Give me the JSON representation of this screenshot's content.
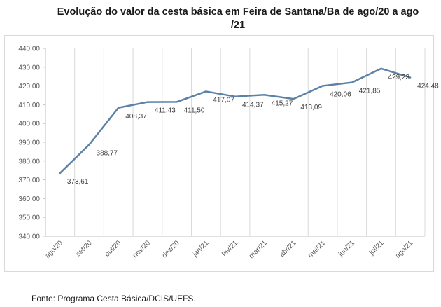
{
  "chart_data": {
    "type": "line",
    "title": "Evolução do valor da cesta básica em Feira de Santana/Ba de ago/20 a ago /21",
    "categories": [
      "ago/20",
      "set/20",
      "out/20",
      "nov/20",
      "dez/20",
      "jan/21",
      "fev/21",
      "mar/21",
      "abr/21",
      "mai/21",
      "jun/21",
      "jul/21",
      "ago/21"
    ],
    "series": [
      {
        "values": [
          373.61,
          388.77,
          408.37,
          411.43,
          411.5,
          417.07,
          414.37,
          415.27,
          413.09,
          420.06,
          421.85,
          429.23,
          424.48
        ]
      }
    ],
    "data_labels": [
      "373,61",
      "388,77",
      "408,37",
      "411,43",
      "411,50",
      "417,07",
      "414,37",
      "415,27",
      "413,09",
      "420,06",
      "421,85",
      "429,23",
      "424,48"
    ],
    "y_ticks": [
      "340,00",
      "350,00",
      "360,00",
      "370,00",
      "380,00",
      "390,00",
      "400,00",
      "410,00",
      "420,00",
      "430,00",
      "440,00"
    ],
    "ylim": [
      340,
      440
    ],
    "grid": "vertical",
    "legend": "none",
    "line_color": "#5b82a6",
    "grid_color": "#d9d9d9",
    "axis_color": "#bfbfbf"
  },
  "source": "Fonte: Programa Cesta Básica/DCIS/UEFS."
}
